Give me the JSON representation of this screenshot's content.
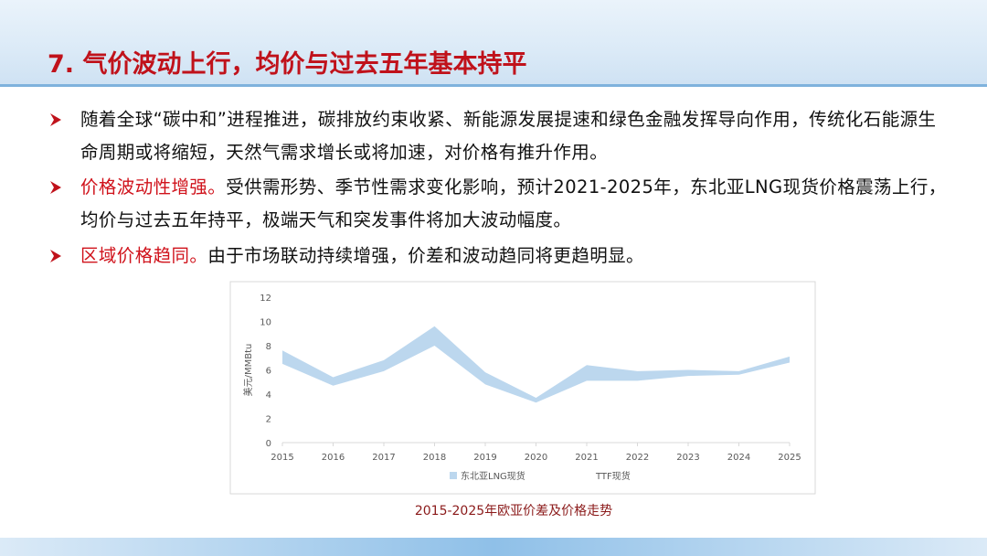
{
  "header": {
    "title": "7. 气价波动上行，均价与过去五年基本持平"
  },
  "bullets": [
    {
      "text": "随着全球“碳中和”进程推进，碳排放约束收紧、新能源发展提速和绿色金融发挥导向作用，传统化石能源生命周期或将缩短，天然气需求增长或将加速，对价格有推升作用。"
    },
    {
      "highlight": "价格波动性增强。",
      "text": "受供需形势、季节性需求变化影响，预计2021-2025年，东北亚LNG现货价格震荡上行，均价与过去五年持平，极端天气和突发事件将加大波动幅度。"
    },
    {
      "highlight": "区域价格趋同。",
      "text": "由于市场联动持续增强，价差和波动趋同将更趋明显。"
    }
  ],
  "chart_data": {
    "type": "range_area",
    "caption": "2015-2025年欧亚价差及价格走势",
    "y_label": "美元/MMBtu",
    "x": [
      2015,
      2016,
      2017,
      2018,
      2019,
      2020,
      2021,
      2022,
      2023,
      2024,
      2025
    ],
    "xlim": [
      2015,
      2025
    ],
    "xticks": [
      2015,
      2016,
      2017,
      2018,
      2019,
      2020,
      2021,
      2022,
      2023,
      2024,
      2025
    ],
    "ylim": [
      0,
      12
    ],
    "yticks": [
      0,
      2,
      4,
      6,
      8,
      10,
      12
    ],
    "series": [
      {
        "name": "东北亚LNG现货",
        "color": "#bcd7ee",
        "low": [
          6.5,
          4.7,
          5.9,
          8.0,
          4.8,
          3.3,
          5.1,
          5.1,
          5.5,
          5.6,
          6.6
        ],
        "high": [
          7.6,
          5.4,
          6.8,
          9.6,
          5.8,
          3.7,
          6.4,
          5.9,
          6.0,
          5.9,
          7.1
        ]
      },
      {
        "name": "TTF现货"
      }
    ]
  }
}
